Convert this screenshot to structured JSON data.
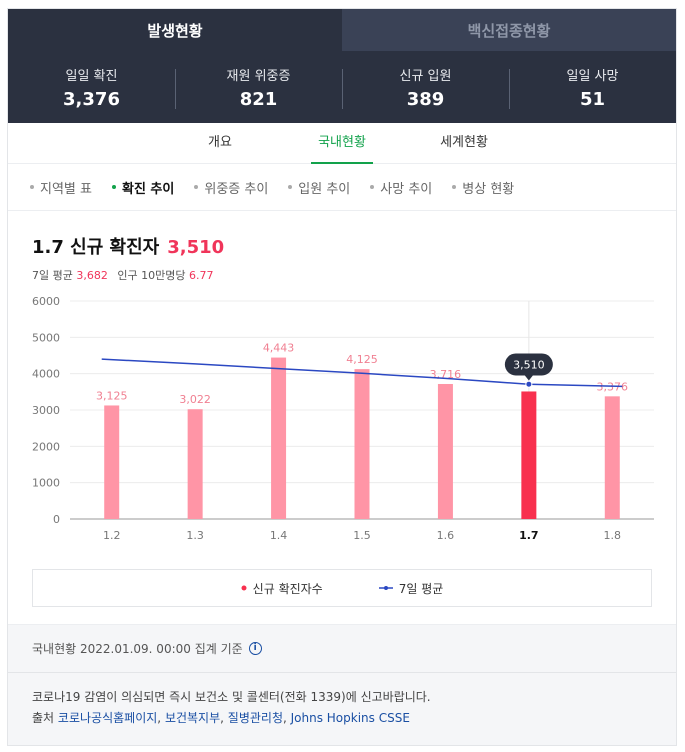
{
  "top_tabs": [
    {
      "label": "발생현황",
      "active": true
    },
    {
      "label": "백신접종현황",
      "active": false
    }
  ],
  "stats": [
    {
      "label": "일일 확진",
      "value": "3,376"
    },
    {
      "label": "재원 위중증",
      "value": "821"
    },
    {
      "label": "신규 입원",
      "value": "389"
    },
    {
      "label": "일일 사망",
      "value": "51"
    }
  ],
  "sub_tabs": [
    {
      "label": "개요",
      "active": false
    },
    {
      "label": "국내현황",
      "active": true
    },
    {
      "label": "세계현황",
      "active": false
    }
  ],
  "filters": [
    {
      "label": "지역별 표",
      "active": false
    },
    {
      "label": "확진 추이",
      "active": true
    },
    {
      "label": "위중증 추이",
      "active": false
    },
    {
      "label": "입원 추이",
      "active": false
    },
    {
      "label": "사망 추이",
      "active": false
    },
    {
      "label": "병상 현황",
      "active": false
    }
  ],
  "headline": {
    "title": "1.7 신규 확진자",
    "value": "3,510",
    "avg_label": "7일 평균",
    "avg_value": "3,682",
    "per100k_label": "인구 10만명당",
    "per100k_value": "6.77"
  },
  "colors": {
    "bar": "#ff95a6",
    "bar_selected": "#f8304e",
    "line": "#2b48c2",
    "accent_green": "#12a24b"
  },
  "chart_data": {
    "type": "bar",
    "categories": [
      "1.2",
      "1.3",
      "1.4",
      "1.5",
      "1.6",
      "1.7",
      "1.8"
    ],
    "series": [
      {
        "name": "신규 확진자수",
        "type": "bar",
        "values": [
          3125,
          3022,
          4443,
          4125,
          3716,
          3510,
          3376
        ],
        "labels": [
          "3,125",
          "3,022",
          "4,443",
          "4,125",
          "3,716",
          "3,510",
          "3,376"
        ]
      },
      {
        "name": "7일 평균",
        "type": "line",
        "values": [
          4400,
          4270,
          4140,
          4010,
          3870,
          3710,
          3650
        ]
      }
    ],
    "selected_index": 5,
    "yticks": [
      "0",
      "1000",
      "2000",
      "3000",
      "4000",
      "5000",
      "6000"
    ],
    "ylim": [
      0,
      6000
    ],
    "grid": true,
    "legend": "bottom"
  },
  "legend": [
    {
      "label": "신규 확진자수"
    },
    {
      "label": "7일 평균"
    }
  ],
  "footer": {
    "basis": "국내현황 2022.01.09. 00:00 집계 기준",
    "info_icon": "i",
    "notice": "코로나19 감염이 의심되면 즉시 보건소 및 콜센터(전화 1339)에 신고바랍니다.",
    "source_label": "출처",
    "sources": [
      "코로나공식홈페이지",
      "보건복지부",
      "질병관리청",
      "Johns Hopkins CSSE"
    ]
  }
}
